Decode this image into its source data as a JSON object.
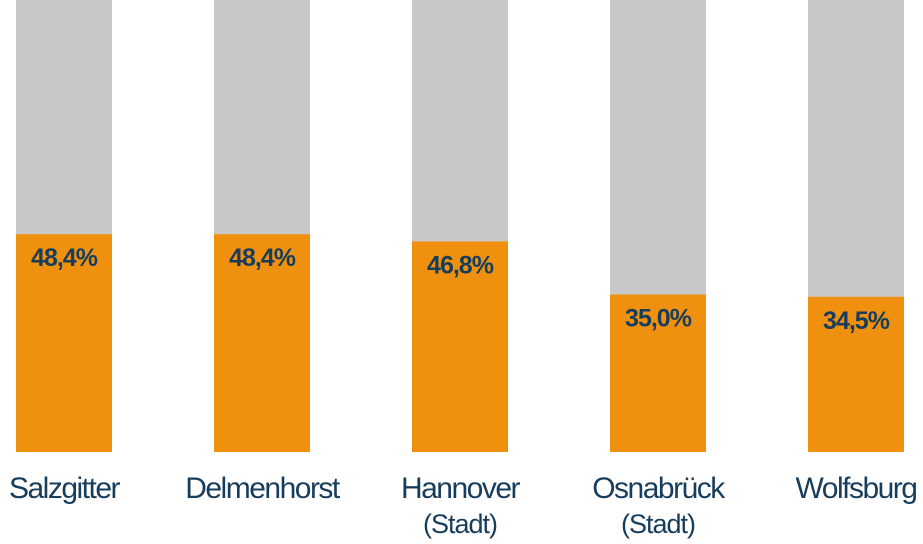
{
  "chart_data": {
    "type": "bar",
    "title": "",
    "xlabel": "",
    "ylabel": "",
    "ylim": [
      0,
      100
    ],
    "grid": false,
    "categories": [
      {
        "name": "Salzgitter",
        "sub": ""
      },
      {
        "name": "Delmenhorst",
        "sub": ""
      },
      {
        "name": "Hannover",
        "sub": "(Stadt)"
      },
      {
        "name": "Osnabrück",
        "sub": "(Stadt)"
      },
      {
        "name": "Wolfsburg",
        "sub": ""
      }
    ],
    "values": [
      48.4,
      48.4,
      46.8,
      35.0,
      34.5
    ],
    "labels": [
      "48,4%",
      "48,4%",
      "46,8%",
      "35,0%",
      "34,5%"
    ],
    "colors": {
      "value": "#f0900f",
      "background": "#c8c8c8",
      "text": "#173d5c"
    }
  }
}
